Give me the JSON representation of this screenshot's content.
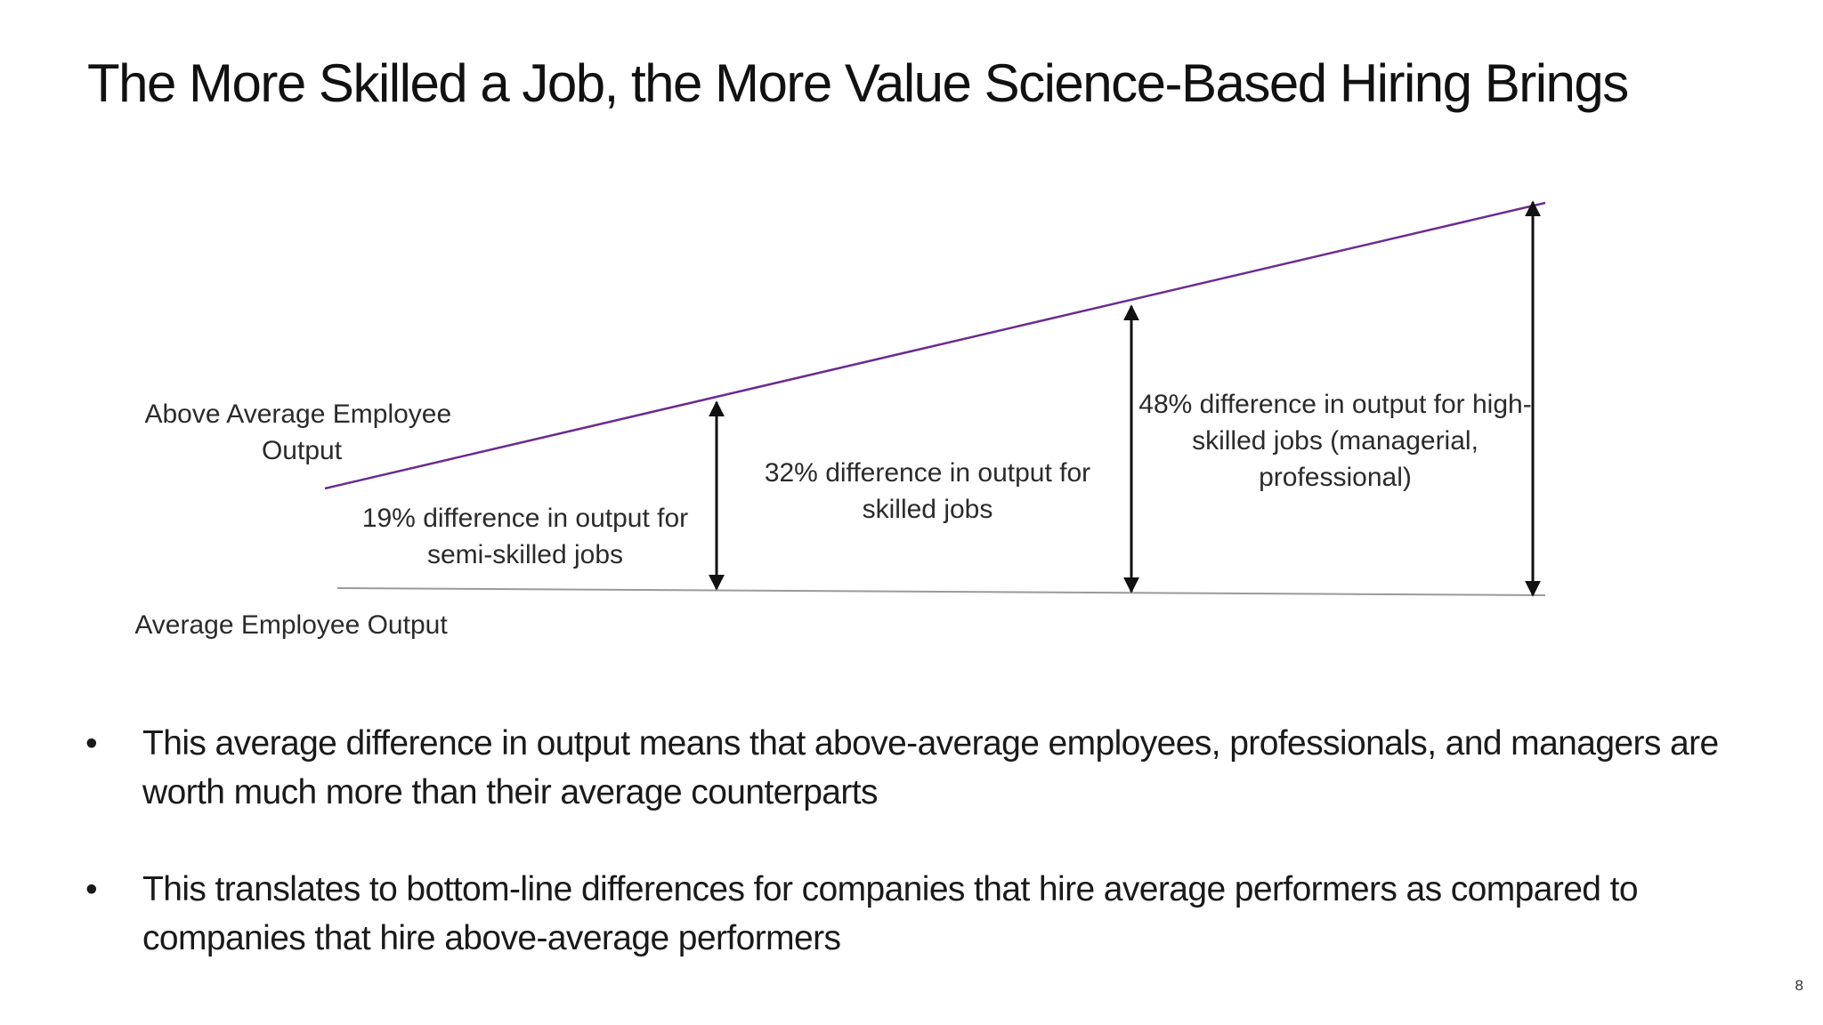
{
  "slide": {
    "title": "The More Skilled a Job, the More Value Science-Based Hiring Brings",
    "page_number": "8"
  },
  "diagram": {
    "labels": {
      "above_average": [
        "Above Average Employee",
        "Output"
      ],
      "average": "Average Employee Output"
    },
    "gaps": [
      {
        "value": 19,
        "label_lines": [
          "19% difference in output for",
          "semi-skilled jobs"
        ]
      },
      {
        "value": 32,
        "label_lines": [
          "32% difference in output for",
          "skilled jobs"
        ]
      },
      {
        "value": 48,
        "label_lines": [
          "48% difference in output for high-",
          "skilled jobs (managerial,",
          "professional)"
        ]
      }
    ],
    "colors": {
      "above_line": "#6a2c91",
      "average_line": "#9a9a9a",
      "arrows": "#111111"
    }
  },
  "bullets": [
    {
      "marker": "•",
      "text": "This average difference in output means that above-average employees, professionals, and managers are worth much more than their average counterparts"
    },
    {
      "marker": "•",
      "text": "This translates to bottom-line differences for companies that hire average performers as compared to companies that hire above-average performers"
    }
  ]
}
